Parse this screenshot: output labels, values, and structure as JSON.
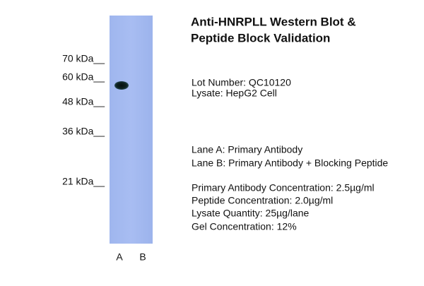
{
  "header": {
    "title_lines": [
      "Anti-HNRPLL Western Blot &",
      "Peptide Block Validation"
    ]
  },
  "markers": [
    "70 kDa__",
    "60 kDa__",
    "48 kDa__",
    "36 kDa__",
    "21 kDa__"
  ],
  "lanes": [
    "A",
    "B"
  ],
  "sample": {
    "lot": "Lot Number: QC10120",
    "lysate": "Lysate: HepG2 Cell"
  },
  "lane_descriptions": [
    "Lane A: Primary Antibody",
    "Lane B: Primary Antibody + Blocking Peptide"
  ],
  "conditions": [
    "Primary Antibody Concentration: 2.5µg/ml",
    "Peptide Concentration: 2.0µg/ml",
    "Lysate Quantity: 25µg/lane",
    "Gel Concentration: 12%"
  ]
}
